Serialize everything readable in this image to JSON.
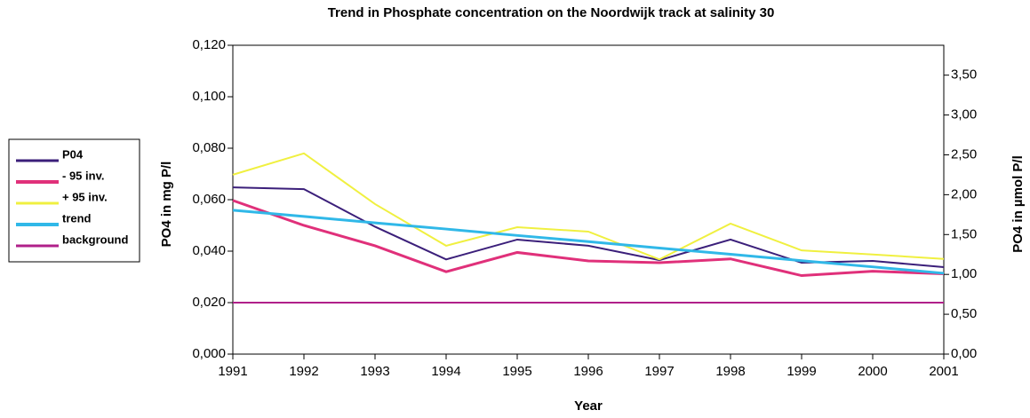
{
  "chart_data": {
    "type": "line",
    "title": "Trend in Phosphate concentration on the Noordwijk track at salinity 30",
    "xlabel": "Year",
    "ylabel": "PO4 in mg P/l",
    "y2label": "PO4 in µmol P/l",
    "categories": [
      "1991",
      "1992",
      "1993",
      "1994",
      "1995",
      "1996",
      "1997",
      "1998",
      "1999",
      "2000",
      "2001"
    ],
    "series": [
      {
        "name": "P04",
        "color": "#3b1f7a",
        "width": 2,
        "values": [
          0.0648,
          0.0641,
          0.0495,
          0.0368,
          0.0445,
          0.0421,
          0.0365,
          0.0445,
          0.0355,
          0.0362,
          0.0338
        ]
      },
      {
        "name": "- 95 inv.",
        "color": "#e0307a",
        "width": 3,
        "values": [
          0.0597,
          0.05,
          0.0421,
          0.032,
          0.0395,
          0.0362,
          0.0355,
          0.037,
          0.0305,
          0.0322,
          0.0312
        ]
      },
      {
        "name": "+ 95 inv.",
        "color": "#f0f040",
        "width": 2,
        "values": [
          0.0697,
          0.078,
          0.0583,
          0.0421,
          0.0493,
          0.0476,
          0.0368,
          0.0507,
          0.0403,
          0.0387,
          0.037
        ]
      },
      {
        "name": "trend",
        "color": "#30b8e8",
        "width": 3,
        "values": [
          0.0559,
          0.0535,
          0.051,
          0.0486,
          0.0461,
          0.0437,
          0.0412,
          0.0388,
          0.0363,
          0.0339,
          0.0314
        ]
      },
      {
        "name": "background",
        "color": "#b0208a",
        "width": 2,
        "values": [
          0.02,
          0.02,
          0.02,
          0.02,
          0.02,
          0.02,
          0.02,
          0.02,
          0.02,
          0.02,
          0.02
        ]
      }
    ],
    "ylim": [
      0,
      0.12
    ],
    "yticks": [
      {
        "value": 0,
        "label": "0,000"
      },
      {
        "value": 0.02,
        "label": "0,020"
      },
      {
        "value": 0.04,
        "label": "0,040"
      },
      {
        "value": 0.06,
        "label": "0,060"
      },
      {
        "value": 0.08,
        "label": "0,080"
      },
      {
        "value": 0.1,
        "label": "0,100"
      },
      {
        "value": 0.12,
        "label": "0,120"
      }
    ],
    "y2lim": [
      0,
      3.875
    ],
    "y2ticks": [
      {
        "value": 0,
        "label": "0,00"
      },
      {
        "value": 0.5,
        "label": "0,50"
      },
      {
        "value": 1,
        "label": "1,00"
      },
      {
        "value": 1.5,
        "label": "1,50"
      },
      {
        "value": 2,
        "label": "2,00"
      },
      {
        "value": 2.5,
        "label": "2,50"
      },
      {
        "value": 3,
        "label": "3,00"
      },
      {
        "value": 3.5,
        "label": "3,50"
      }
    ],
    "legend": "left"
  }
}
